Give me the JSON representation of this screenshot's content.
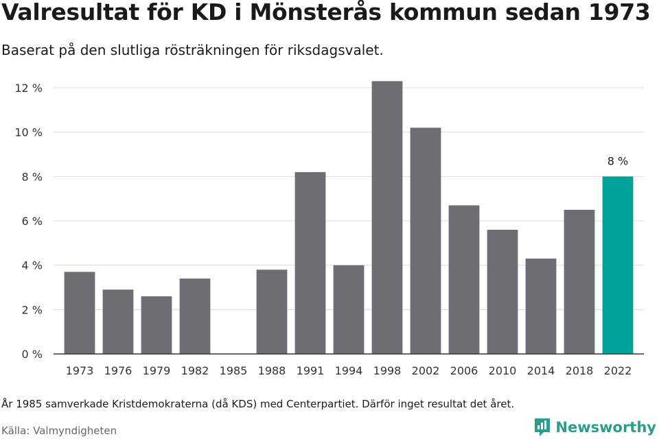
{
  "header": {
    "title": "Valresultat för KD i Mönsterås kommun sedan 1973",
    "subtitle": "Baserat på den slutliga rösträkningen för riksdagsvalet."
  },
  "footer": {
    "note": "År 1985 samverkade Kristdemokraterna (då KDS) med Centerpartiet. Därför inget resultat det året.",
    "source": "Källa: Valmyndigheten",
    "brand": "Newsworthy"
  },
  "colors": {
    "bar": "#6e6d73",
    "highlight": "#00a29a",
    "grid": "#dddddd",
    "axis": "#333333",
    "brand": "#2a9d8f"
  },
  "chart_data": {
    "type": "bar",
    "categories": [
      "1973",
      "1976",
      "1979",
      "1982",
      "1985",
      "1988",
      "1991",
      "1994",
      "1998",
      "2002",
      "2006",
      "2010",
      "2014",
      "2018",
      "2022"
    ],
    "values": [
      3.7,
      2.9,
      2.6,
      3.4,
      null,
      3.8,
      8.2,
      4.0,
      12.3,
      10.2,
      6.7,
      5.6,
      4.3,
      6.5,
      8.0
    ],
    "ylim": [
      0,
      12
    ],
    "yticks": [
      0,
      2,
      4,
      6,
      8,
      10,
      12
    ],
    "ytick_labels": [
      "0 %",
      "2 %",
      "4 %",
      "6 %",
      "8 %",
      "10 %",
      "12 %"
    ],
    "highlight_index": 14,
    "data_labels": [
      {
        "index": 14,
        "text": "8 %"
      }
    ],
    "grid": true
  }
}
